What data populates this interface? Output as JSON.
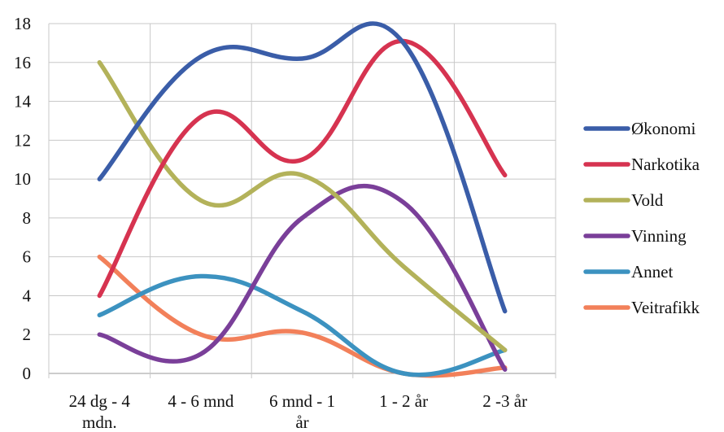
{
  "chart_data": {
    "type": "line",
    "title": "",
    "xlabel": "",
    "ylabel": "",
    "categories": [
      "24 dg - 4 mdn.",
      "4 - 6 mnd",
      "6 mnd - 1 år",
      "1 - 2 år",
      "2 -3 år"
    ],
    "category_lines": [
      [
        "24 dg - 4",
        "mdn."
      ],
      [
        "4 - 6 mnd"
      ],
      [
        "6 mnd - 1",
        "år"
      ],
      [
        "1 - 2 år"
      ],
      [
        "2 -3 år"
      ]
    ],
    "ylim": [
      0,
      18
    ],
    "yticks": [
      0,
      2,
      4,
      6,
      8,
      10,
      12,
      14,
      16,
      18
    ],
    "grid": true,
    "legend_position": "right",
    "smooth": true,
    "series": [
      {
        "name": "Økonomi",
        "color": "#3a5da8",
        "values": [
          10,
          16.3,
          16.2,
          17,
          3.2
        ]
      },
      {
        "name": "Narkotika",
        "color": "#d63350",
        "values": [
          4,
          13.2,
          11,
          17.1,
          10.2
        ]
      },
      {
        "name": "Vold",
        "color": "#b3b25a",
        "values": [
          16,
          8.9,
          10.2,
          5.5,
          1.2
        ]
      },
      {
        "name": "Vinning",
        "color": "#7a3f99",
        "values": [
          2,
          1,
          8,
          8.8,
          0.2
        ]
      },
      {
        "name": "Annet",
        "color": "#3c92c0",
        "values": [
          3,
          5,
          3.2,
          0,
          1.2
        ]
      },
      {
        "name": "Veitrafikk",
        "color": "#f2805a",
        "values": [
          6,
          2,
          2.1,
          0,
          0.3
        ]
      }
    ]
  }
}
